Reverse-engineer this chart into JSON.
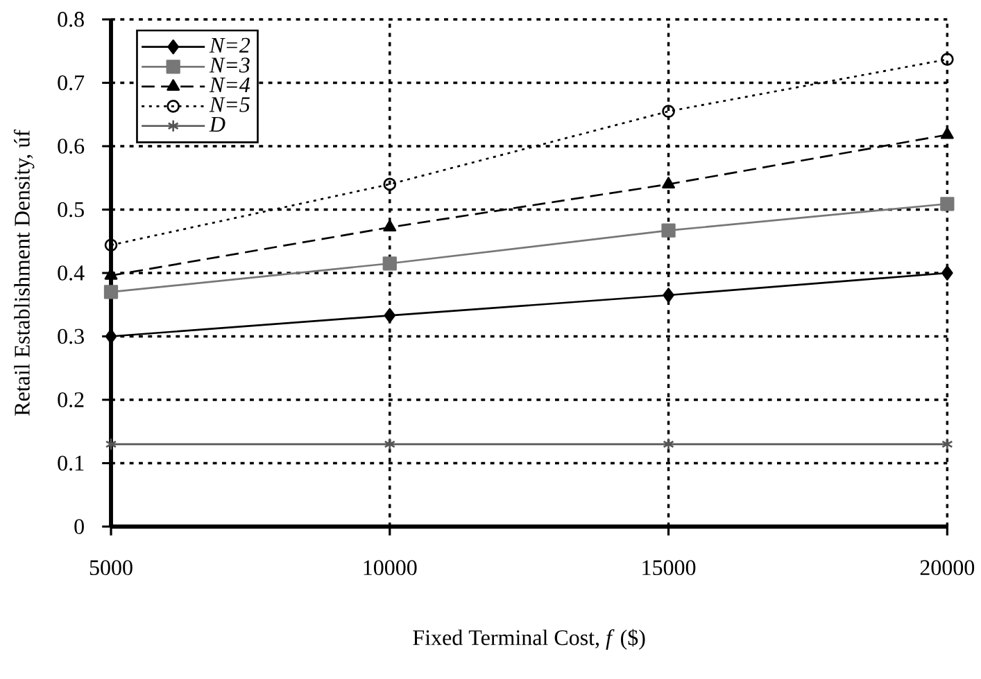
{
  "chart_data": {
    "type": "line",
    "xlabel": "Fixed Terminal Cost, *f* ($)",
    "ylabel": "Retail Establishment Density, úf",
    "x": [
      5000,
      10000,
      15000,
      20000
    ],
    "series": [
      {
        "name": "N=2",
        "color": "#000000",
        "marker": "diamond",
        "line_style": "solid",
        "values": [
          0.3,
          0.333,
          0.365,
          0.4
        ]
      },
      {
        "name": "N=3",
        "color": "#777777",
        "marker": "square",
        "line_style": "solid",
        "values": [
          0.37,
          0.415,
          0.467,
          0.509
        ]
      },
      {
        "name": "N=4",
        "color": "#000000",
        "marker": "triangle",
        "line_style": "dashed",
        "values": [
          0.396,
          0.472,
          0.54,
          0.618
        ]
      },
      {
        "name": "N=5",
        "color": "#000000",
        "marker": "circle",
        "line_style": "dotted",
        "values": [
          0.444,
          0.54,
          0.655,
          0.737
        ]
      },
      {
        "name": "D",
        "color": "#555555",
        "marker": "cross",
        "line_style": "solid",
        "values": [
          0.13,
          0.13,
          0.13,
          0.13
        ]
      }
    ],
    "xlim": [
      5000,
      20000
    ],
    "xticks": [
      5000,
      10000,
      15000,
      20000
    ],
    "ylim": [
      0,
      0.8
    ],
    "yticks": [
      0,
      0.1,
      0.2,
      0.3,
      0.4,
      0.5,
      0.6,
      0.7,
      0.8
    ],
    "grid": true,
    "legend": "top left"
  }
}
